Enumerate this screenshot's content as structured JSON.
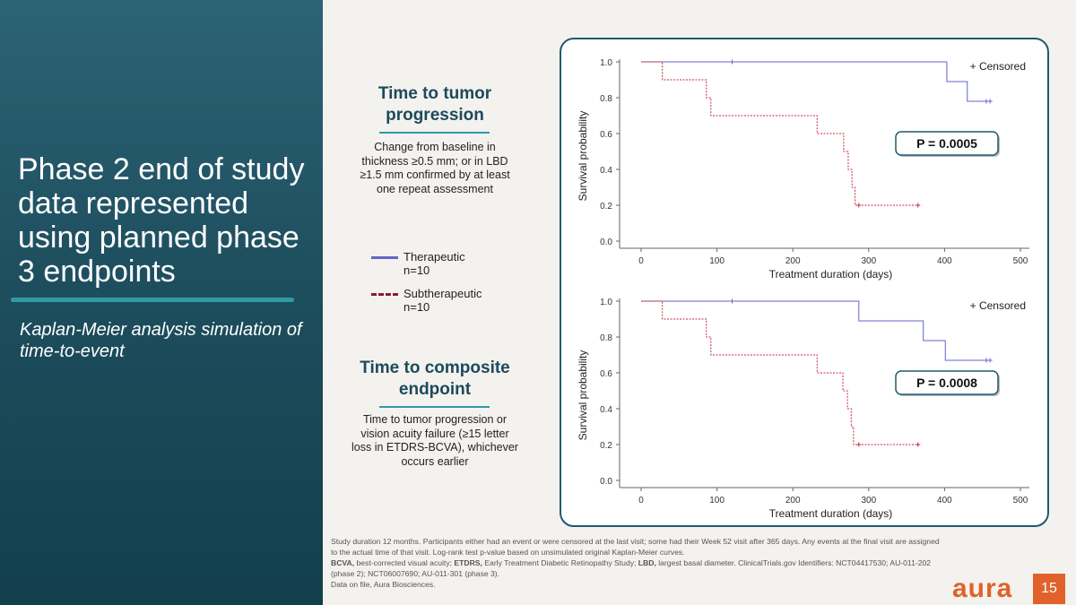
{
  "slide": {
    "title": "Phase 2 end of study data represented using planned phase 3 endpoints",
    "subtitle": "Kaplan-Meier analysis simulation of time-to-event",
    "page_number": "15",
    "logo_text": "aura"
  },
  "sections": [
    {
      "heading": "Time to tumor progression",
      "description": "Change from baseline in thickness ≥0.5 mm; or in LBD ≥1.5 mm confirmed by at least one repeat assessment"
    },
    {
      "heading": "Time to composite endpoint",
      "description": "Time to tumor progression or vision acuity failure (≥15 letter loss in ETDRS-BCVA), whichever occurs earlier"
    }
  ],
  "legend": [
    {
      "label": "Therapeutic",
      "n": "n=10",
      "color": "#6264c9",
      "style": "solid"
    },
    {
      "label": "Subtherapeutic",
      "n": "n=10",
      "color": "#8b1c2c",
      "style": "dashed"
    }
  ],
  "footnote": {
    "line1": "Study duration 12 months. Participants either had an event or were censored at the last visit; some had their Week 52 visit after 365 days. Any events at the final visit are assigned to the actual time of that visit. Log-rank test p-value based on unsimulated original Kaplan-Meier curves.",
    "abbrev_bcva": "BCVA,",
    "abbrev_bcva_text": " best-corrected visual acuity; ",
    "abbrev_etdrs": "ETDRS,",
    "abbrev_etdrs_text": " Early Treatment Diabetic Retinopathy Study; ",
    "abbrev_lbd": "LBD,",
    "abbrev_lbd_text": " largest basal diameter. ClinicalTrials.gov Identifiers: NCT04417530; AU-011-202 (phase 2); NCT06007690; AU-011-301 (phase 3).",
    "line3": "Data on file, Aura Biosciences."
  },
  "chart_data": [
    {
      "type": "line",
      "title": "Time to tumor progression",
      "xlabel": "Treatment duration (days)",
      "ylabel": "Survival probability",
      "xlim": [
        0,
        500
      ],
      "ylim": [
        0,
        1
      ],
      "xticks": [
        "0",
        "100",
        "200",
        "300",
        "400",
        "500"
      ],
      "yticks": [
        "0.0",
        "0.2",
        "0.4",
        "0.6",
        "0.8",
        "1.0"
      ],
      "legend_text": "+ Censored",
      "p_value": "P = 0.0005",
      "series": [
        {
          "name": "Therapeutic",
          "color": "#6264c9",
          "dashed": false,
          "steps": [
            [
              0,
              1.0
            ],
            [
              403,
              1.0
            ],
            [
              403,
              0.89
            ],
            [
              430,
              0.89
            ],
            [
              430,
              0.78
            ],
            [
              462,
              0.78
            ]
          ],
          "censored": [
            [
              120,
              1.0
            ],
            [
              455,
              0.78
            ],
            [
              460,
              0.78
            ]
          ]
        },
        {
          "name": "Subtherapeutic",
          "color": "#c62a3c",
          "dashed": true,
          "steps": [
            [
              0,
              1.0
            ],
            [
              28,
              1.0
            ],
            [
              28,
              0.9
            ],
            [
              86,
              0.9
            ],
            [
              86,
              0.8
            ],
            [
              92,
              0.8
            ],
            [
              92,
              0.7
            ],
            [
              232,
              0.7
            ],
            [
              232,
              0.6
            ],
            [
              267,
              0.6
            ],
            [
              267,
              0.5
            ],
            [
              273,
              0.5
            ],
            [
              273,
              0.4
            ],
            [
              278,
              0.4
            ],
            [
              278,
              0.3
            ],
            [
              282,
              0.3
            ],
            [
              282,
              0.2
            ],
            [
              365,
              0.2
            ]
          ],
          "censored": [
            [
              287,
              0.2
            ],
            [
              365,
              0.2
            ]
          ]
        }
      ]
    },
    {
      "type": "line",
      "title": "Time to composite endpoint",
      "xlabel": "Treatment duration (days)",
      "ylabel": "Survival probability",
      "xlim": [
        0,
        500
      ],
      "ylim": [
        0,
        1
      ],
      "xticks": [
        "0",
        "100",
        "200",
        "300",
        "400",
        "500"
      ],
      "yticks": [
        "0.0",
        "0.2",
        "0.4",
        "0.6",
        "0.8",
        "1.0"
      ],
      "legend_text": "+ Censored",
      "p_value": "P = 0.0008",
      "series": [
        {
          "name": "Therapeutic",
          "color": "#6264c9",
          "dashed": false,
          "steps": [
            [
              0,
              1.0
            ],
            [
              287,
              1.0
            ],
            [
              287,
              0.89
            ],
            [
              372,
              0.89
            ],
            [
              372,
              0.78
            ],
            [
              401,
              0.78
            ],
            [
              401,
              0.67
            ],
            [
              462,
              0.67
            ]
          ],
          "censored": [
            [
              120,
              1.0
            ],
            [
              455,
              0.67
            ],
            [
              460,
              0.67
            ]
          ]
        },
        {
          "name": "Subtherapeutic",
          "color": "#c62a3c",
          "dashed": true,
          "steps": [
            [
              0,
              1.0
            ],
            [
              28,
              1.0
            ],
            [
              28,
              0.9
            ],
            [
              86,
              0.9
            ],
            [
              86,
              0.8
            ],
            [
              92,
              0.8
            ],
            [
              92,
              0.7
            ],
            [
              232,
              0.7
            ],
            [
              232,
              0.6
            ],
            [
              266,
              0.6
            ],
            [
              266,
              0.5
            ],
            [
              272,
              0.5
            ],
            [
              272,
              0.4
            ],
            [
              277,
              0.4
            ],
            [
              277,
              0.3
            ],
            [
              280,
              0.3
            ],
            [
              280,
              0.2
            ],
            [
              365,
              0.2
            ]
          ],
          "censored": [
            [
              287,
              0.2
            ],
            [
              365,
              0.2
            ]
          ]
        }
      ]
    }
  ]
}
